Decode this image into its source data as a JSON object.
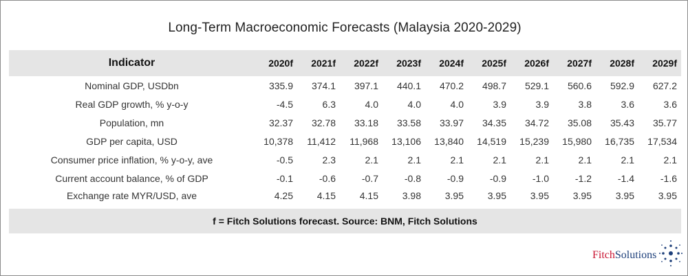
{
  "title": "Long-Term Macroeconomic Forecasts (Malaysia 2020-2029)",
  "table": {
    "header": [
      "Indicator",
      "2020f",
      "2021f",
      "2022f",
      "2023f",
      "2024f",
      "2025f",
      "2026f",
      "2027f",
      "2028f",
      "2029f"
    ],
    "rows": [
      {
        "label": "Nominal GDP, USDbn",
        "values": [
          "335.9",
          "374.1",
          "397.1",
          "440.1",
          "470.2",
          "498.7",
          "529.1",
          "560.6",
          "592.9",
          "627.2"
        ]
      },
      {
        "label": "Real GDP growth, % y-o-y",
        "values": [
          "-4.5",
          "6.3",
          "4.0",
          "4.0",
          "4.0",
          "3.9",
          "3.9",
          "3.8",
          "3.6",
          "3.6"
        ]
      },
      {
        "label": "Population, mn",
        "values": [
          "32.37",
          "32.78",
          "33.18",
          "33.58",
          "33.97",
          "34.35",
          "34.72",
          "35.08",
          "35.43",
          "35.77"
        ]
      },
      {
        "label": "GDP per capita, USD",
        "values": [
          "10,378",
          "11,412",
          "11,968",
          "13,106",
          "13,840",
          "14,519",
          "15,239",
          "15,980",
          "16,735",
          "17,534"
        ]
      },
      {
        "label": "Consumer price inflation, % y-o-y, ave",
        "values": [
          "-0.5",
          "2.3",
          "2.1",
          "2.1",
          "2.1",
          "2.1",
          "2.1",
          "2.1",
          "2.1",
          "2.1"
        ]
      },
      {
        "label": "Current account balance, % of GDP",
        "values": [
          "-0.1",
          "-0.6",
          "-0.7",
          "-0.8",
          "-0.9",
          "-0.9",
          "-1.0",
          "-1.2",
          "-1.4",
          "-1.6"
        ]
      },
      {
        "label": "Exchange rate MYR/USD, ave",
        "values": [
          "4.25",
          "4.15",
          "4.15",
          "3.98",
          "3.95",
          "3.95",
          "3.95",
          "3.95",
          "3.95",
          "3.95"
        ]
      }
    ],
    "footnote": "f = Fitch Solutions forecast. Source: BNM, Fitch Solutions"
  },
  "logo": {
    "part1": "Fitch",
    "part2": "Solutions"
  },
  "colors": {
    "header_bg": "#e5e5e5",
    "logo_red": "#c8102e",
    "logo_blue": "#1d3f7a"
  }
}
